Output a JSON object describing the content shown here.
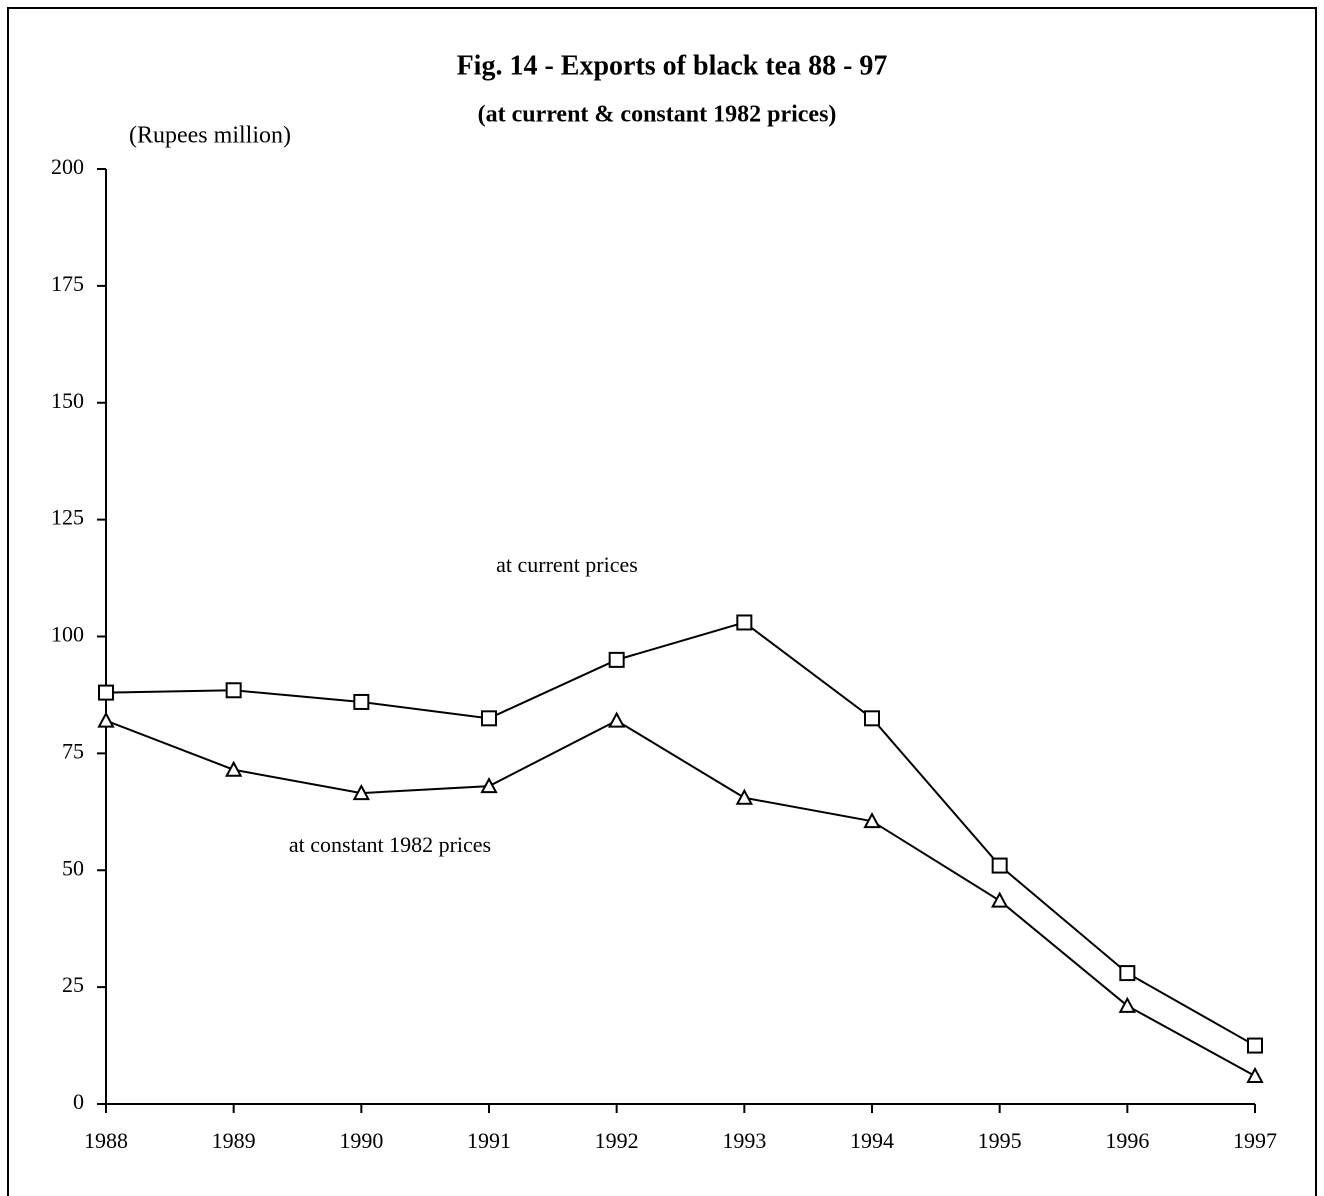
{
  "chart_data": {
    "type": "line",
    "title": "Fig. 14 - Exports of black tea 88 - 97",
    "subtitle": "(at current & constant 1982 prices)",
    "y_label": "(Rupees million)",
    "categories": [
      "1988",
      "1989",
      "1990",
      "1991",
      "1992",
      "1993",
      "1994",
      "1995",
      "1996",
      "1997"
    ],
    "series": [
      {
        "name": "at current prices",
        "color": "#000000",
        "marker": "square",
        "values": [
          88,
          88.5,
          86,
          82.5,
          95,
          103,
          82.5,
          51,
          28,
          12.5
        ]
      },
      {
        "name": "at constant 1982 prices",
        "color": "#000000",
        "marker": "triangle",
        "values": [
          82,
          71.5,
          66.5,
          68,
          82,
          65.5,
          60.5,
          43.5,
          21,
          6
        ]
      }
    ],
    "ylim": [
      0,
      200
    ],
    "yticks": [
      0,
      25,
      50,
      75,
      100,
      125,
      150,
      175,
      200
    ],
    "grid": false
  }
}
